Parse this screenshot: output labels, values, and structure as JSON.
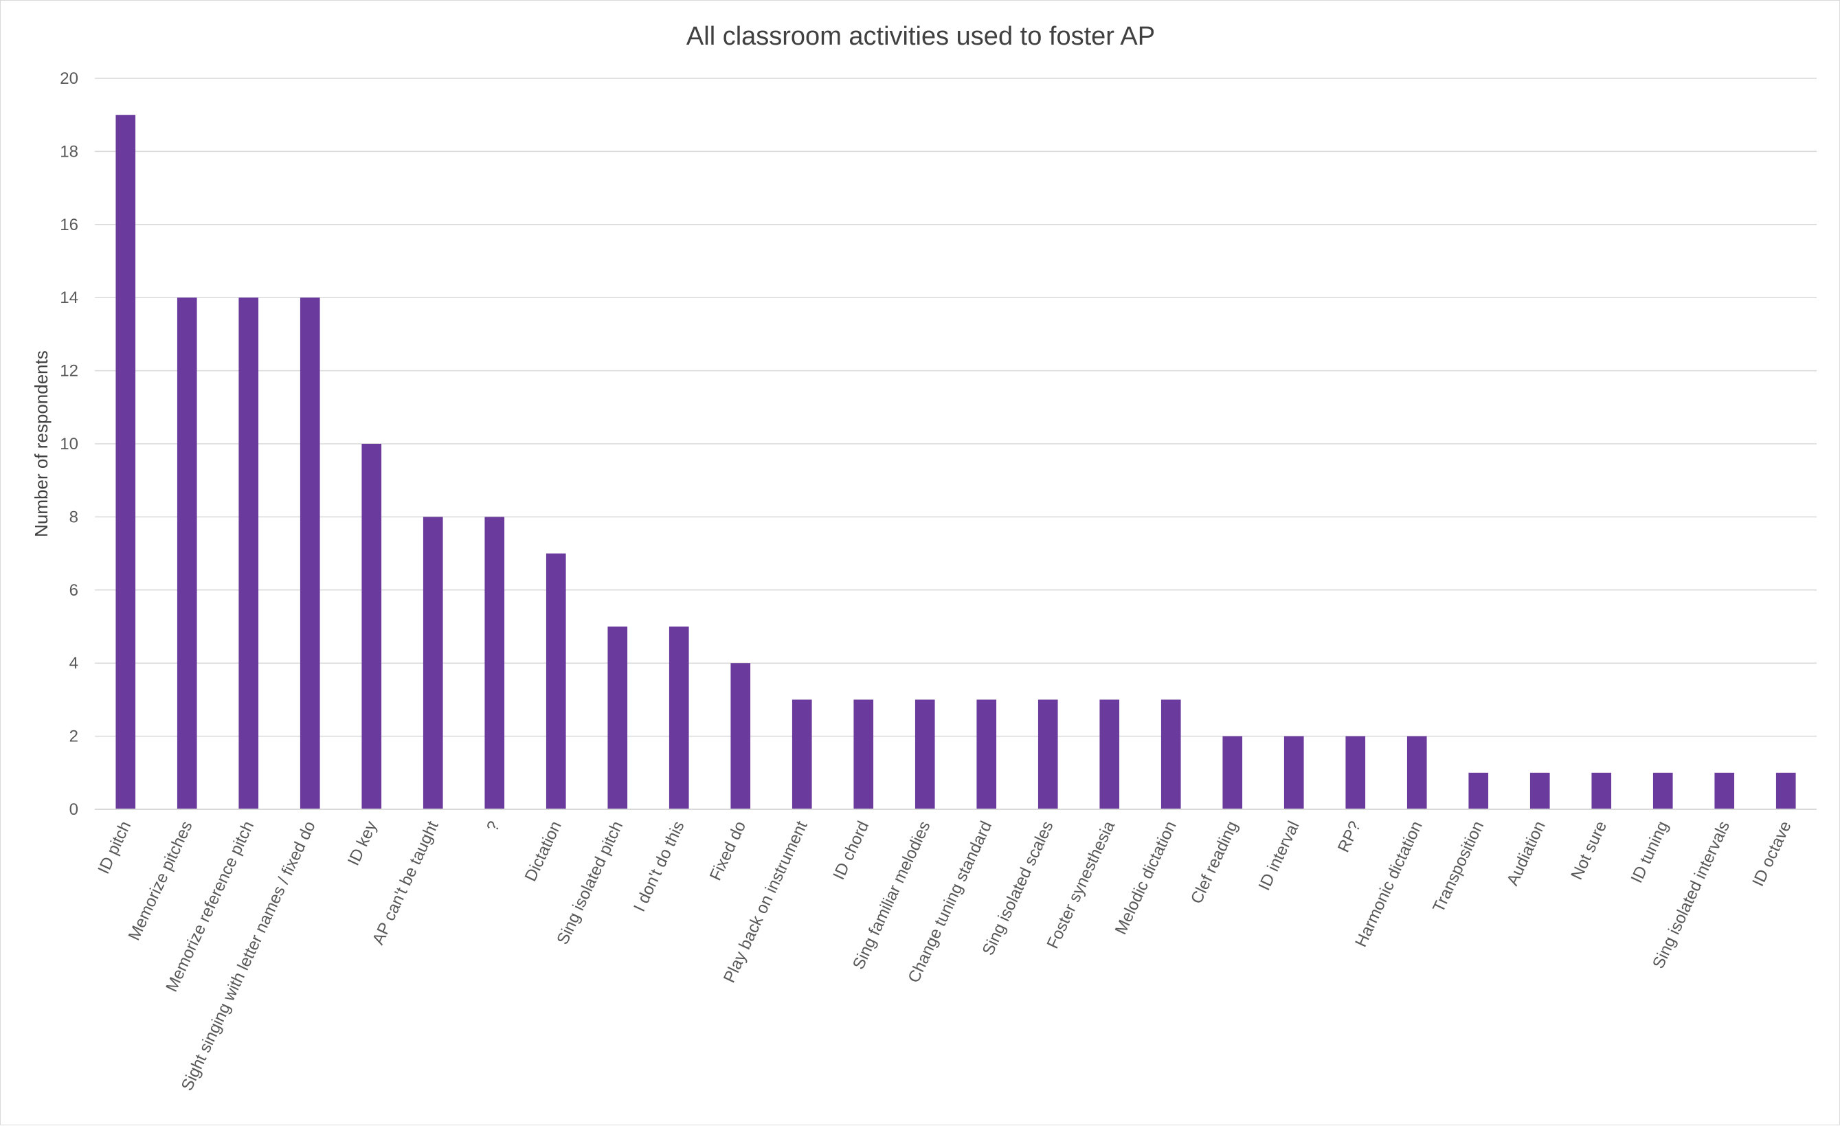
{
  "chart_data": {
    "type": "bar",
    "title": "All classroom activities used to foster AP",
    "xlabel": "",
    "ylabel": "Number of respondents",
    "ylim": [
      0,
      20
    ],
    "yticks": [
      0,
      2,
      4,
      6,
      8,
      10,
      12,
      14,
      16,
      18,
      20
    ],
    "grid": true,
    "legend": "none",
    "bar_color": "#6a3a9c",
    "categories": [
      "ID pitch",
      "Memorize pitches",
      "Memorize reference pitch",
      "Sight singing with letter names / fixed do",
      "ID key",
      "AP can't be taught",
      "?",
      "Dictation",
      "Sing isolated pitch",
      "I don't do this",
      "Fixed do",
      "Play back on instrument",
      "ID chord",
      "Sing familiar melodies",
      "Change tuning standard",
      "Sing isolated scales",
      "Foster synesthesia",
      "Melodic dictation",
      "Clef reading",
      "ID interval",
      "RP?",
      "Harmonic dictation",
      "Transposition",
      "Audiation",
      "Not sure",
      "ID tuning",
      "Sing isolated intervals",
      "ID octave"
    ],
    "values": [
      19,
      14,
      14,
      14,
      10,
      8,
      8,
      7,
      5,
      5,
      4,
      3,
      3,
      3,
      3,
      3,
      3,
      3,
      2,
      2,
      2,
      2,
      1,
      1,
      1,
      1,
      1,
      1
    ]
  }
}
